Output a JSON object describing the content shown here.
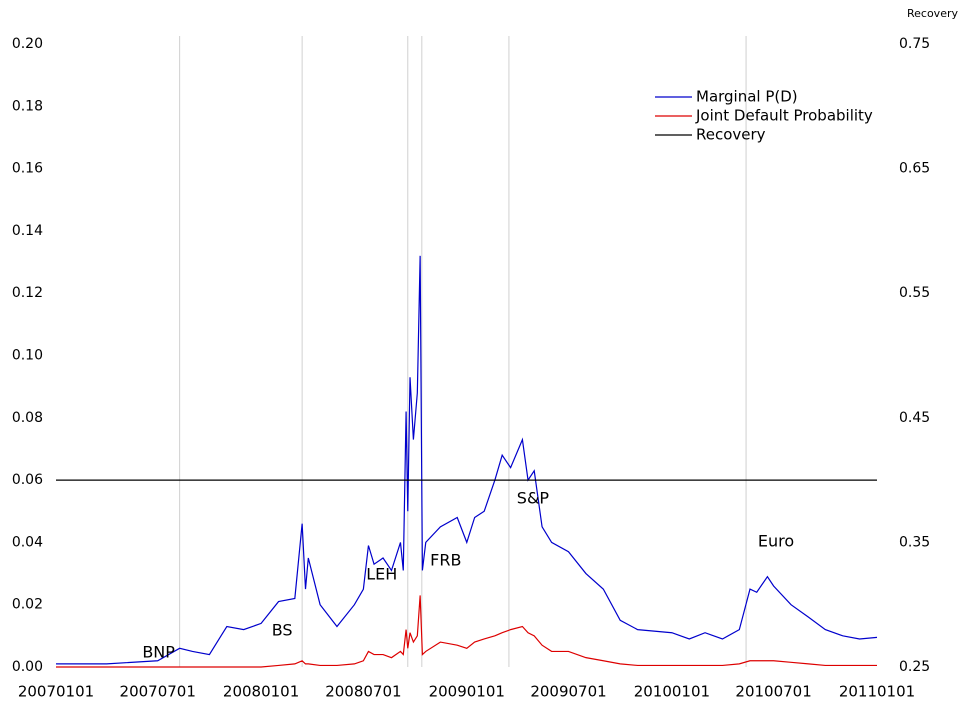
{
  "chart_data": {
    "type": "line",
    "y2label": "Recovery",
    "x": [
      "20070101",
      "20070401",
      "20070701",
      "20070809",
      "20070901",
      "20071001",
      "20071101",
      "20071201",
      "20080101",
      "20080201",
      "20080301",
      "20080314",
      "20080320",
      "20080325",
      "20080415",
      "20080515",
      "20080615",
      "20080701",
      "20080710",
      "20080720",
      "20080805",
      "20080820",
      "20080905",
      "20080910",
      "20080915",
      "20080918",
      "20080922",
      "20080928",
      "20081005",
      "20081010",
      "20081014",
      "20081020",
      "20081115",
      "20081215",
      "20090101",
      "20090115",
      "20090201",
      "20090220",
      "20090305",
      "20090320",
      "20090410",
      "20090420",
      "20090501",
      "20090515",
      "20090601",
      "20090701",
      "20090801",
      "20090901",
      "20091001",
      "20091101",
      "20100101",
      "20100201",
      "20100301",
      "20100401",
      "20100501",
      "20100520",
      "20100601",
      "20100620",
      "20100701",
      "20100801",
      "20100901",
      "20101001",
      "20101101",
      "20101201",
      "20110101"
    ],
    "series": [
      {
        "name": "Marginal P(D)",
        "color": "#0000cc",
        "axis": "y",
        "values": [
          0.001,
          0.001,
          0.002,
          0.006,
          0.005,
          0.004,
          0.013,
          0.012,
          0.014,
          0.021,
          0.022,
          0.046,
          0.025,
          0.035,
          0.02,
          0.013,
          0.02,
          0.025,
          0.039,
          0.033,
          0.035,
          0.031,
          0.04,
          0.031,
          0.082,
          0.05,
          0.093,
          0.073,
          0.088,
          0.132,
          0.031,
          0.04,
          0.045,
          0.048,
          0.04,
          0.048,
          0.05,
          0.06,
          0.068,
          0.064,
          0.073,
          0.06,
          0.063,
          0.045,
          0.04,
          0.037,
          0.03,
          0.025,
          0.015,
          0.012,
          0.011,
          0.009,
          0.011,
          0.009,
          0.012,
          0.025,
          0.024,
          0.029,
          0.026,
          0.02,
          0.016,
          0.012,
          0.01,
          0.009,
          0.0095
        ]
      },
      {
        "name": "Joint Default Probability",
        "color": "#dd0000",
        "axis": "y",
        "values": [
          0,
          0,
          0,
          0,
          0,
          0,
          0,
          0,
          0,
          0.0005,
          0.001,
          0.002,
          0.001,
          0.001,
          0.0005,
          0.0005,
          0.001,
          0.002,
          0.005,
          0.004,
          0.004,
          0.003,
          0.005,
          0.004,
          0.012,
          0.006,
          0.011,
          0.008,
          0.01,
          0.023,
          0.004,
          0.005,
          0.008,
          0.007,
          0.006,
          0.008,
          0.009,
          0.01,
          0.011,
          0.012,
          0.013,
          0.011,
          0.01,
          0.007,
          0.005,
          0.005,
          0.003,
          0.002,
          0.001,
          0.0005,
          0.0005,
          0.0005,
          0.0005,
          0.0005,
          0.001,
          0.002,
          0.002,
          0.002,
          0.002,
          0.0015,
          0.001,
          0.0005,
          0.0005,
          0.0005,
          0.0005
        ]
      },
      {
        "name": "Recovery",
        "color": "#000000",
        "axis": "y2",
        "values": [
          0.4,
          0.4,
          0.4,
          0.4,
          0.4,
          0.4,
          0.4,
          0.4,
          0.4,
          0.4,
          0.4,
          0.4,
          0.4,
          0.4,
          0.4,
          0.4,
          0.4,
          0.4,
          0.4,
          0.4,
          0.4,
          0.4,
          0.4,
          0.4,
          0.4,
          0.4,
          0.4,
          0.4,
          0.4,
          0.4,
          0.4,
          0.4,
          0.4,
          0.4,
          0.4,
          0.4,
          0.4,
          0.4,
          0.4,
          0.4,
          0.4,
          0.4,
          0.4,
          0.4,
          0.4,
          0.4,
          0.4,
          0.4,
          0.4,
          0.4,
          0.4,
          0.4,
          0.4,
          0.4,
          0.4,
          0.4,
          0.4,
          0.4,
          0.4,
          0.4,
          0.4,
          0.4,
          0.4,
          0.4,
          0.4
        ]
      }
    ],
    "events": [
      {
        "date": "20070809",
        "label": "BNP"
      },
      {
        "date": "20080314",
        "label": "BS"
      },
      {
        "date": "20080918",
        "label": "LEH"
      },
      {
        "date": "20081013",
        "label": "FRB"
      },
      {
        "date": "20090317",
        "label": "S&P"
      },
      {
        "date": "20100513",
        "label": "Euro"
      }
    ],
    "xlim": [
      "20070101",
      "20110101"
    ],
    "xticks": [
      "20070101",
      "20070701",
      "20080101",
      "20080701",
      "20090101",
      "20090701",
      "20100101",
      "20100701",
      "20110101"
    ],
    "ylim": [
      0,
      0.2
    ],
    "yticks": [
      {
        "value": 0,
        "label": "0.00"
      },
      0.02,
      0.04,
      0.06,
      0.08,
      {
        "value": 0.1,
        "label": "0.10"
      },
      0.12,
      0.14,
      0.16,
      0.18,
      {
        "value": 0.2,
        "label": "0.20"
      }
    ],
    "y2lim": [
      0.25,
      0.75
    ],
    "y2ticks": [
      0.25,
      0.35,
      0.45,
      0.55,
      0.65,
      0.75
    ],
    "legend": "upper right"
  }
}
